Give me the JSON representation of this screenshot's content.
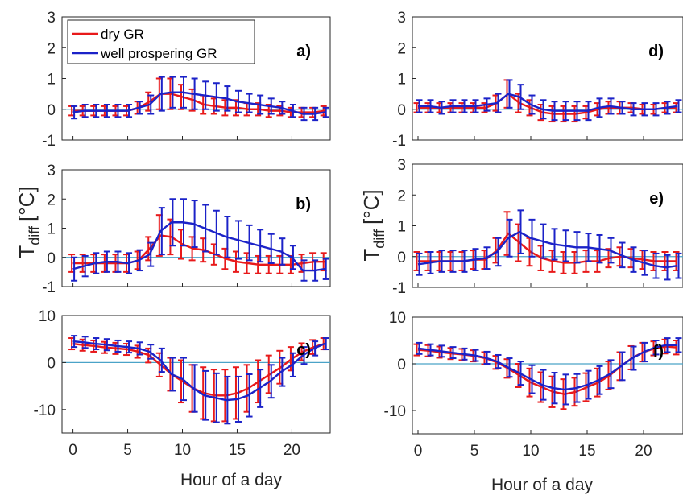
{
  "figure": {
    "xlabel": "Hour of a day",
    "ylabel_main": "T",
    "ylabel_sub": "diff",
    "ylabel_unit": "[°C]"
  },
  "colors": {
    "dry": "#e8191a",
    "well": "#1b22c8",
    "zero_line": "#4aa3c8",
    "axis": "#262626"
  },
  "chart_data": [
    {
      "panel": "a)",
      "type": "line",
      "xlim": [
        -1,
        23.5
      ],
      "ylim": [
        -1,
        3
      ],
      "yticks": [
        -1,
        0,
        1,
        2,
        3
      ],
      "xticks": [
        0,
        5,
        10,
        15,
        20
      ],
      "legend": {
        "entries": [
          "dry GR",
          "well prospering GR"
        ],
        "placement": "top-left"
      },
      "x": [
        0,
        1,
        2,
        3,
        4,
        5,
        6,
        7,
        8,
        9,
        10,
        11,
        12,
        13,
        14,
        15,
        16,
        17,
        18,
        19,
        20,
        21,
        22,
        23
      ],
      "series": [
        {
          "name": "dry GR",
          "values": [
            -0.05,
            -0.05,
            -0.05,
            -0.05,
            -0.05,
            -0.05,
            0.05,
            0.25,
            0.5,
            0.5,
            0.4,
            0.3,
            0.15,
            0.1,
            0.05,
            0.05,
            0.0,
            0.0,
            -0.05,
            -0.05,
            -0.1,
            -0.1,
            -0.1,
            -0.05
          ],
          "error": [
            0.15,
            0.15,
            0.15,
            0.15,
            0.15,
            0.15,
            0.2,
            0.3,
            0.5,
            0.5,
            0.4,
            0.35,
            0.3,
            0.25,
            0.25,
            0.25,
            0.2,
            0.2,
            0.2,
            0.15,
            0.15,
            0.15,
            0.15,
            0.15
          ]
        },
        {
          "name": "well prospering GR",
          "values": [
            -0.1,
            -0.05,
            -0.05,
            -0.05,
            -0.05,
            -0.05,
            0.05,
            0.15,
            0.5,
            0.55,
            0.55,
            0.5,
            0.45,
            0.4,
            0.35,
            0.25,
            0.2,
            0.15,
            0.1,
            0.05,
            -0.05,
            -0.15,
            -0.15,
            -0.1
          ],
          "error": [
            0.2,
            0.2,
            0.2,
            0.2,
            0.2,
            0.2,
            0.2,
            0.3,
            0.55,
            0.5,
            0.5,
            0.5,
            0.45,
            0.45,
            0.4,
            0.35,
            0.3,
            0.3,
            0.25,
            0.2,
            0.2,
            0.2,
            0.2,
            0.15
          ]
        }
      ]
    },
    {
      "panel": "b)",
      "type": "line",
      "xlim": [
        -1,
        23.5
      ],
      "ylim": [
        -1,
        3
      ],
      "yticks": [
        -1,
        0,
        1,
        2,
        3
      ],
      "xticks": [
        0,
        5,
        10,
        15,
        20
      ],
      "x": [
        0,
        1,
        2,
        3,
        4,
        5,
        6,
        7,
        8,
        9,
        10,
        11,
        12,
        13,
        14,
        15,
        16,
        17,
        18,
        19,
        20,
        21,
        22,
        23
      ],
      "series": [
        {
          "name": "dry GR",
          "values": [
            -0.2,
            -0.2,
            -0.2,
            -0.2,
            -0.2,
            -0.2,
            -0.1,
            0.3,
            0.75,
            0.7,
            0.45,
            0.3,
            0.25,
            0.1,
            -0.05,
            -0.15,
            -0.2,
            -0.25,
            -0.25,
            -0.25,
            -0.25,
            -0.2,
            -0.15,
            -0.15
          ],
          "error": [
            0.3,
            0.3,
            0.3,
            0.3,
            0.3,
            0.3,
            0.3,
            0.4,
            0.7,
            0.6,
            0.5,
            0.4,
            0.4,
            0.35,
            0.35,
            0.35,
            0.35,
            0.3,
            0.3,
            0.3,
            0.3,
            0.3,
            0.3,
            0.3
          ]
        },
        {
          "name": "well prospering GR",
          "values": [
            -0.4,
            -0.3,
            -0.2,
            -0.15,
            -0.15,
            -0.2,
            -0.1,
            0.1,
            0.9,
            1.2,
            1.2,
            1.15,
            1.0,
            0.85,
            0.7,
            0.6,
            0.5,
            0.4,
            0.3,
            0.2,
            0.0,
            -0.45,
            -0.45,
            -0.4
          ],
          "error": [
            0.4,
            0.35,
            0.35,
            0.35,
            0.35,
            0.35,
            0.35,
            0.4,
            0.8,
            0.8,
            0.8,
            0.8,
            0.8,
            0.75,
            0.7,
            0.65,
            0.6,
            0.55,
            0.5,
            0.45,
            0.4,
            0.35,
            0.35,
            0.35
          ]
        }
      ]
    },
    {
      "panel": "c)",
      "type": "line",
      "xlim": [
        -1,
        23.5
      ],
      "ylim": [
        -15,
        10
      ],
      "yticks": [
        -10,
        0,
        10
      ],
      "xticks": [
        0,
        5,
        10,
        15,
        20
      ],
      "x": [
        0,
        1,
        2,
        3,
        4,
        5,
        6,
        7,
        8,
        9,
        10,
        11,
        12,
        13,
        14,
        15,
        16,
        17,
        18,
        19,
        20,
        21,
        22,
        23
      ],
      "series": [
        {
          "name": "dry GR",
          "values": [
            4.0,
            3.7,
            3.5,
            3.2,
            3.0,
            2.8,
            2.3,
            1.5,
            -0.5,
            -2.5,
            -4.0,
            -5.5,
            -6.5,
            -7.0,
            -7.0,
            -6.5,
            -5.5,
            -4.0,
            -2.5,
            -1.0,
            0.8,
            2.3,
            3.3,
            4.0
          ],
          "error": [
            1.2,
            1.2,
            1.2,
            1.2,
            1.2,
            1.2,
            1.3,
            1.5,
            2.5,
            3.5,
            4.5,
            5.0,
            5.5,
            5.5,
            5.5,
            5.5,
            5.0,
            4.5,
            4.0,
            3.5,
            2.5,
            1.8,
            1.5,
            1.2
          ]
        },
        {
          "name": "well prospering GR",
          "values": [
            4.5,
            4.3,
            4.0,
            3.8,
            3.5,
            3.3,
            3.0,
            2.3,
            0.5,
            -2.5,
            -3.5,
            -5.5,
            -7.0,
            -7.5,
            -8.0,
            -7.8,
            -7.0,
            -5.5,
            -4.0,
            -2.0,
            -0.5,
            1.5,
            3.0,
            4.0
          ],
          "error": [
            1.2,
            1.2,
            1.2,
            1.2,
            1.2,
            1.2,
            1.3,
            1.5,
            2.5,
            3.5,
            4.5,
            5.0,
            5.2,
            5.2,
            5.0,
            4.8,
            4.5,
            4.0,
            3.5,
            3.0,
            2.5,
            1.8,
            1.5,
            1.2
          ]
        }
      ]
    },
    {
      "panel": "d)",
      "type": "line",
      "xlim": [
        -0.5,
        23.5
      ],
      "ylim": [
        -1,
        3
      ],
      "yticks": [
        -1,
        0,
        1,
        2,
        3
      ],
      "xticks": [
        0,
        5,
        10,
        15,
        20
      ],
      "x": [
        0,
        1,
        2,
        3,
        4,
        5,
        6,
        7,
        8,
        9,
        10,
        11,
        12,
        13,
        14,
        15,
        16,
        17,
        18,
        19,
        20,
        21,
        22,
        23
      ],
      "series": [
        {
          "name": "dry GR",
          "values": [
            0.05,
            0.05,
            0.05,
            0.05,
            0.05,
            0.05,
            0.05,
            0.2,
            0.5,
            0.2,
            0.05,
            -0.1,
            -0.15,
            -0.15,
            -0.15,
            -0.1,
            0.0,
            0.05,
            0.05,
            0.05,
            0.0,
            0.0,
            0.05,
            0.05
          ],
          "error": [
            0.15,
            0.15,
            0.15,
            0.15,
            0.15,
            0.15,
            0.15,
            0.25,
            0.45,
            0.3,
            0.25,
            0.25,
            0.25,
            0.25,
            0.25,
            0.2,
            0.2,
            0.2,
            0.2,
            0.15,
            0.15,
            0.15,
            0.15,
            0.15
          ]
        },
        {
          "name": "well prospering GR",
          "values": [
            0.1,
            0.1,
            0.05,
            0.1,
            0.1,
            0.1,
            0.15,
            0.2,
            0.5,
            0.4,
            0.15,
            0.0,
            -0.05,
            -0.05,
            -0.05,
            -0.05,
            0.05,
            0.1,
            0.05,
            0.0,
            0.0,
            0.0,
            0.05,
            0.1
          ],
          "error": [
            0.2,
            0.2,
            0.2,
            0.2,
            0.2,
            0.2,
            0.2,
            0.3,
            0.45,
            0.4,
            0.3,
            0.3,
            0.3,
            0.3,
            0.3,
            0.3,
            0.3,
            0.25,
            0.2,
            0.2,
            0.2,
            0.2,
            0.2,
            0.2
          ]
        }
      ]
    },
    {
      "panel": "e)",
      "type": "line",
      "xlim": [
        -0.5,
        23.5
      ],
      "ylim": [
        -1,
        3
      ],
      "yticks": [
        -1,
        0,
        1,
        2,
        3
      ],
      "xticks": [
        0,
        5,
        10,
        15,
        20
      ],
      "x": [
        0,
        1,
        2,
        3,
        4,
        5,
        6,
        7,
        8,
        9,
        10,
        11,
        12,
        13,
        14,
        15,
        16,
        17,
        18,
        19,
        20,
        21,
        22,
        23
      ],
      "series": [
        {
          "name": "dry GR",
          "values": [
            -0.15,
            -0.15,
            -0.15,
            -0.15,
            -0.15,
            -0.1,
            -0.1,
            0.2,
            0.75,
            0.45,
            0.15,
            -0.05,
            -0.15,
            -0.2,
            -0.2,
            -0.15,
            -0.15,
            -0.05,
            0.0,
            -0.05,
            -0.1,
            -0.15,
            -0.15,
            -0.15
          ],
          "error": [
            0.3,
            0.3,
            0.3,
            0.3,
            0.3,
            0.3,
            0.3,
            0.4,
            0.7,
            0.6,
            0.45,
            0.4,
            0.35,
            0.35,
            0.35,
            0.35,
            0.35,
            0.3,
            0.3,
            0.3,
            0.3,
            0.3,
            0.3,
            0.3
          ]
        },
        {
          "name": "well prospering GR",
          "values": [
            -0.25,
            -0.2,
            -0.15,
            -0.15,
            -0.15,
            -0.1,
            -0.05,
            0.15,
            0.6,
            0.8,
            0.6,
            0.5,
            0.4,
            0.35,
            0.3,
            0.3,
            0.25,
            0.2,
            0.05,
            -0.1,
            -0.2,
            -0.3,
            -0.35,
            -0.3
          ],
          "error": [
            0.35,
            0.35,
            0.35,
            0.35,
            0.35,
            0.35,
            0.35,
            0.45,
            0.6,
            0.7,
            0.6,
            0.55,
            0.5,
            0.5,
            0.5,
            0.45,
            0.45,
            0.4,
            0.4,
            0.4,
            0.4,
            0.4,
            0.4,
            0.4
          ]
        }
      ]
    },
    {
      "panel": "f)",
      "type": "line",
      "xlim": [
        -0.5,
        23.5
      ],
      "ylim": [
        -15,
        10
      ],
      "yticks": [
        -10,
        0,
        10
      ],
      "xticks": [
        0,
        5,
        10,
        15,
        20
      ],
      "x": [
        0,
        1,
        2,
        3,
        4,
        5,
        6,
        7,
        8,
        9,
        10,
        11,
        12,
        13,
        14,
        15,
        16,
        17,
        18,
        19,
        20,
        21,
        22,
        23
      ],
      "series": [
        {
          "name": "dry GR",
          "values": [
            3.0,
            2.8,
            2.5,
            2.2,
            2.0,
            1.7,
            1.2,
            0.3,
            -1.0,
            -2.5,
            -4.0,
            -5.0,
            -6.0,
            -6.5,
            -6.0,
            -5.0,
            -4.0,
            -2.5,
            -0.5,
            1.3,
            2.5,
            3.3,
            3.7,
            3.5
          ],
          "error": [
            1.2,
            1.2,
            1.2,
            1.2,
            1.2,
            1.2,
            1.3,
            1.4,
            2.0,
            2.5,
            3.0,
            3.2,
            3.3,
            3.2,
            3.0,
            3.0,
            3.0,
            3.0,
            3.0,
            2.5,
            2.0,
            1.5,
            1.5,
            1.5
          ]
        },
        {
          "name": "well prospering GR",
          "values": [
            3.3,
            3.0,
            2.7,
            2.4,
            2.1,
            1.8,
            1.3,
            0.5,
            -0.8,
            -2.0,
            -3.3,
            -4.5,
            -5.2,
            -5.5,
            -5.2,
            -4.5,
            -3.5,
            -2.2,
            -0.5,
            1.2,
            2.5,
            3.5,
            4.0,
            4.0
          ],
          "error": [
            1.2,
            1.2,
            1.2,
            1.2,
            1.2,
            1.2,
            1.3,
            1.4,
            2.0,
            2.5,
            3.0,
            3.2,
            3.3,
            3.2,
            3.0,
            3.0,
            3.0,
            3.0,
            3.0,
            2.5,
            2.0,
            1.5,
            1.5,
            1.5
          ]
        }
      ]
    }
  ]
}
